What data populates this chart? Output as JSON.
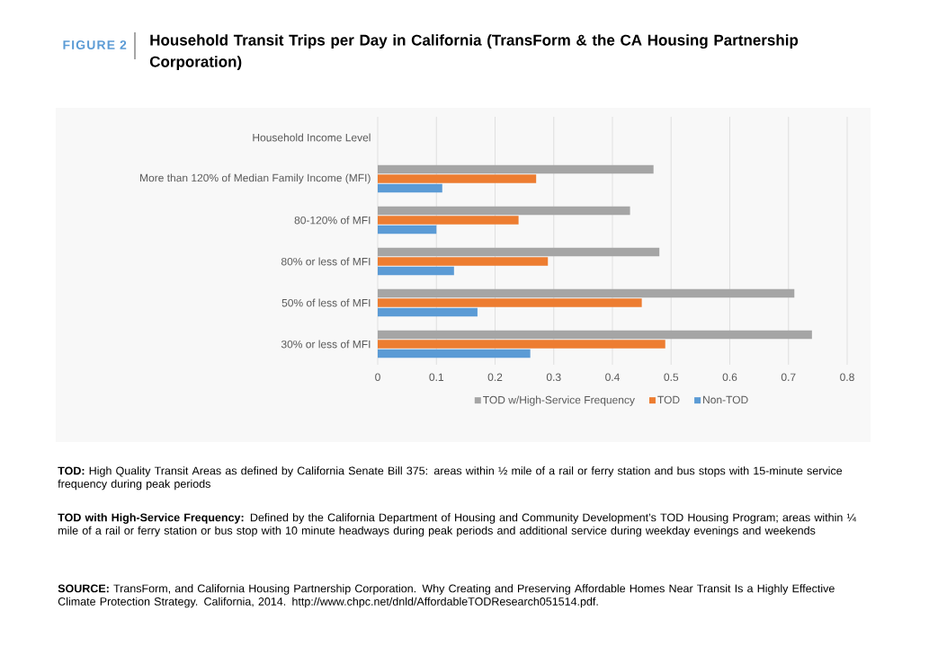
{
  "chart_data": {
    "type": "bar",
    "orientation": "horizontal",
    "title": "Household Transit Trips per Day in California (TransForm & the CA Housing Partnership Corporation)",
    "categories": [
      "Household Income Level",
      "More than 120% of Median Family Income (MFI)",
      "80-120% of MFI",
      "80% or less of MFI",
      "50% of less of MFI",
      "30% or less of MFI"
    ],
    "series": [
      {
        "name": "TOD w/High-Service Frequency",
        "color": "#a5a5a5",
        "values": [
          null,
          0.47,
          0.43,
          0.48,
          0.71,
          0.74
        ]
      },
      {
        "name": "TOD",
        "color": "#ed7d31",
        "values": [
          null,
          0.27,
          0.24,
          0.29,
          0.45,
          0.49
        ]
      },
      {
        "name": "Non-TOD",
        "color": "#5b9bd5",
        "values": [
          null,
          0.11,
          0.1,
          0.13,
          0.17,
          0.26
        ]
      }
    ],
    "xlim": [
      0,
      0.8
    ],
    "xticks": [
      0,
      0.1,
      0.2,
      0.3,
      0.4,
      0.5,
      0.6,
      0.7,
      0.8
    ],
    "grid": "x",
    "legend": "bottom",
    "annotations": [
      "FIGURE 2",
      "**TOD:** High Quality Transit Areas as defined by California Senate Bill 375: areas within ½ mile of a rail or ferry station and bus stops with 15-minute service frequency during peak periods",
      "**TOD with High-Service Frequency:** Defined by the California Department of Housing and Community Development’s TOD Housing Program; areas within ¼ mile of a rail or ferry station or bus stop with 10 minute headways during peak periods and additional service during weekday evenings and weekends",
      "**SOURCE:** TransForm, and California Housing Partnership Corporation. Why Creating and Preserving Affordable Homes Near Transit Is a Highly Effective Climate Protection Strategy. California, 2014. http://www.chpc.net/dnld/AffordableTODResearch051514.pdf."
    ]
  }
}
